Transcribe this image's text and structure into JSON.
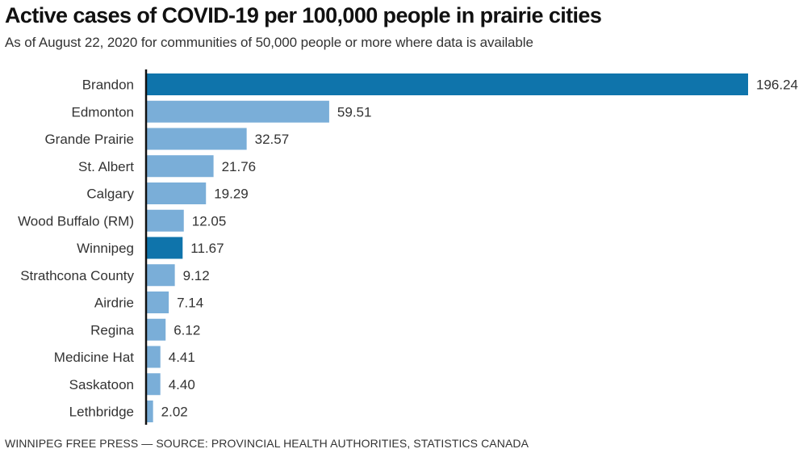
{
  "chart_data": {
    "type": "bar",
    "orientation": "horizontal",
    "title": "Active cases of COVID-19 per 100,000 people in prairie cities",
    "subtitle": "As of August 22, 2020 for communities of 50,000 people or more where data is available",
    "xlabel": "",
    "ylabel": "",
    "xlim": [
      0,
      196.24
    ],
    "grid": false,
    "categories": [
      "Brandon",
      "Edmonton",
      "Grande Prairie",
      "St. Albert",
      "Calgary",
      "Wood Buffalo (RM)",
      "Winnipeg",
      "Strathcona County",
      "Airdrie",
      "Regina",
      "Medicine Hat",
      "Saskatoon",
      "Lethbridge"
    ],
    "values": [
      196.24,
      59.51,
      32.57,
      21.76,
      19.29,
      12.05,
      11.67,
      9.12,
      7.14,
      6.12,
      4.41,
      4.4,
      2.02
    ],
    "value_labels": [
      "196.24",
      "59.51",
      "32.57",
      "21.76",
      "19.29",
      "12.05",
      "11.67",
      "9.12",
      "7.14",
      "6.12",
      "4.41",
      "4.40",
      "2.02"
    ],
    "highlighted": [
      "Brandon",
      "Winnipeg"
    ],
    "colors": {
      "highlight": "#0f74ab",
      "default": "#7aaed8",
      "axis": "#111111"
    },
    "source": "WINNIPEG FREE PRESS — SOURCE: PROVINCIAL HEALTH AUTHORITIES, STATISTICS CANADA"
  }
}
